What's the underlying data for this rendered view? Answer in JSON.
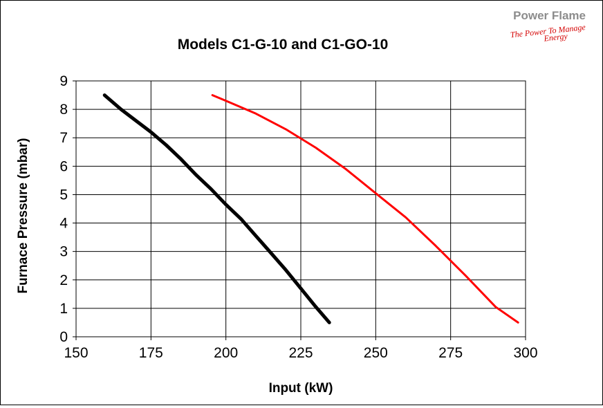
{
  "logo": {
    "brand": "Power Flame",
    "tagline_1": "The Power To Manage",
    "tagline_2": "Energy"
  },
  "chart_data": {
    "type": "line",
    "title": "Models C1-G-10 and C1-GO-10",
    "xlabel": "Input (kW)",
    "ylabel": "Furnace Pressure (mbar)",
    "xlim": [
      150,
      300
    ],
    "ylim": [
      0,
      9
    ],
    "x_ticks": [
      150,
      175,
      200,
      225,
      250,
      275,
      300
    ],
    "y_ticks": [
      0,
      1,
      2,
      3,
      4,
      5,
      6,
      7,
      8,
      9
    ],
    "grid": true,
    "legend": "none",
    "series": [
      {
        "color": "#000000",
        "points": [
          [
            159.5,
            8.5
          ],
          [
            165,
            8.0
          ],
          [
            170,
            7.6
          ],
          [
            175,
            7.2
          ],
          [
            180,
            6.75
          ],
          [
            185,
            6.25
          ],
          [
            190,
            5.7
          ],
          [
            195,
            5.2
          ],
          [
            200,
            4.65
          ],
          [
            205,
            4.15
          ],
          [
            210,
            3.55
          ],
          [
            215,
            2.95
          ],
          [
            220,
            2.35
          ],
          [
            225,
            1.7
          ],
          [
            230,
            1.05
          ],
          [
            234.5,
            0.5
          ]
        ]
      },
      {
        "color": "#ff0000",
        "points": [
          [
            195.5,
            8.5
          ],
          [
            200,
            8.3
          ],
          [
            210,
            7.85
          ],
          [
            220,
            7.3
          ],
          [
            230,
            6.65
          ],
          [
            240,
            5.9
          ],
          [
            250,
            5.05
          ],
          [
            260,
            4.2
          ],
          [
            270,
            3.2
          ],
          [
            280,
            2.15
          ],
          [
            290,
            1.05
          ],
          [
            297.5,
            0.5
          ]
        ]
      }
    ]
  }
}
